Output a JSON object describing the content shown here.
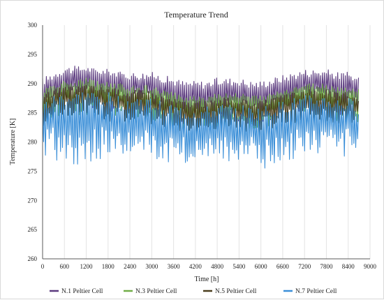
{
  "chart_data": {
    "type": "line",
    "title": "Temperature Trend",
    "xlabel": "Time [h]",
    "ylabel": "Temperature [K]",
    "xlim": [
      0,
      9000
    ],
    "ylim": [
      260,
      300
    ],
    "xticks": [
      "0",
      "600",
      "1200",
      "1800",
      "2400",
      "3000",
      "3600",
      "4200",
      "4800",
      "5400",
      "6000",
      "6600",
      "7200",
      "7800",
      "8400",
      "9000"
    ],
    "yticks": [
      "260",
      "265",
      "270",
      "275",
      "280",
      "285",
      "290",
      "295",
      "300"
    ],
    "grid": "vertical",
    "legend_position": "bottom",
    "x": [
      0,
      300,
      600,
      900,
      1200,
      1500,
      1800,
      2100,
      2400,
      2700,
      3000,
      3300,
      3600,
      3900,
      4200,
      4500,
      4800,
      5100,
      5400,
      5700,
      6000,
      6300,
      6600,
      6900,
      7200,
      7500,
      7800,
      8100,
      8400,
      8700
    ],
    "series": [
      {
        "name": "N.1 Peltier Cell",
        "color": "#5b3a7e",
        "values": [
          289,
          290,
          291,
          291,
          291.5,
          291,
          291,
          290.5,
          290,
          290,
          290,
          289.5,
          289,
          288.5,
          288.5,
          288.5,
          289,
          289,
          289,
          288.5,
          288.5,
          289,
          289.5,
          290,
          290.5,
          290.5,
          290.5,
          290,
          290,
          289
        ],
        "max": [
          291,
          292,
          293,
          293,
          293,
          292.5,
          292.5,
          292,
          292,
          292,
          292,
          291.5,
          291,
          290.5,
          290.5,
          290.5,
          291,
          291,
          291,
          290.5,
          290.5,
          291,
          291.5,
          292,
          292.5,
          292.5,
          292.5,
          292,
          292,
          291
        ],
        "min": [
          284,
          285,
          285.5,
          285.5,
          285.5,
          285.5,
          285,
          285,
          285,
          284.5,
          284.5,
          284,
          283.5,
          283,
          283,
          283,
          283.5,
          283.5,
          283.5,
          283,
          283,
          283.5,
          284,
          284.5,
          285,
          285,
          285,
          284.5,
          284.5,
          284
        ]
      },
      {
        "name": "N.3 Peltier Cell",
        "color": "#70ad47",
        "values": [
          287.5,
          288.5,
          289,
          289,
          289.5,
          289,
          289,
          288.5,
          288,
          288,
          288,
          287.5,
          287,
          286.5,
          286.5,
          286.5,
          287,
          287,
          287,
          286.5,
          286.5,
          287,
          287.5,
          288,
          288.5,
          288.5,
          288.5,
          288,
          288,
          287.5
        ],
        "max": [
          289,
          290,
          290.5,
          290.5,
          291,
          290.5,
          290.5,
          290,
          290,
          290,
          289.5,
          289,
          288.5,
          288,
          288,
          288,
          288.5,
          288.5,
          288.5,
          288,
          288,
          288.5,
          289,
          289.5,
          290,
          290,
          290,
          289.5,
          289.5,
          289
        ],
        "min": [
          283,
          284,
          284.5,
          284.5,
          284.5,
          284.5,
          284,
          284,
          284,
          283.5,
          283.5,
          283,
          282.5,
          282,
          282,
          282,
          282.5,
          282.5,
          282.5,
          282,
          282,
          282.5,
          283,
          283.5,
          284,
          284,
          284,
          283.5,
          283.5,
          283
        ]
      },
      {
        "name": "N.5 Peltier Cell",
        "color": "#4a3d1c",
        "values": [
          286.5,
          287.5,
          288,
          288,
          288.5,
          288,
          288,
          287.5,
          287,
          287,
          287,
          286.5,
          286,
          285.5,
          285.5,
          285.5,
          286,
          286,
          286,
          285.5,
          285.5,
          286,
          286.5,
          287,
          287.5,
          287.5,
          287.5,
          287,
          287,
          286.5
        ],
        "max": [
          288,
          289,
          289.5,
          289.5,
          290,
          289.5,
          289.5,
          289,
          289,
          289,
          288.5,
          288,
          287.5,
          287,
          287,
          287,
          287.5,
          287.5,
          287.5,
          287,
          287,
          287.5,
          288,
          288.5,
          289,
          289,
          289,
          288.5,
          288.5,
          288
        ],
        "min": [
          282.5,
          283.5,
          284,
          284,
          284,
          284,
          283.5,
          283.5,
          283.5,
          283,
          283,
          282.5,
          282,
          281.5,
          281.5,
          281.5,
          282,
          282,
          282,
          281.5,
          281.5,
          282,
          282.5,
          283,
          283.5,
          283.5,
          283.5,
          283,
          283,
          282.5
        ]
      },
      {
        "name": "N.7 Peltier Cell",
        "color": "#3b8fd8",
        "values": [
          283.5,
          284.5,
          285,
          285,
          285.5,
          285,
          285,
          284.5,
          284,
          284,
          284,
          283.5,
          283,
          282.5,
          282.5,
          282.5,
          283,
          283,
          283,
          282.5,
          282.5,
          283,
          283.5,
          284,
          284.5,
          284.5,
          284.5,
          284,
          284,
          283.5
        ],
        "max": [
          287,
          288,
          288.5,
          288.5,
          289,
          288.5,
          288.5,
          288,
          288,
          288,
          287.5,
          287,
          286.5,
          286,
          286,
          286,
          286.5,
          286.5,
          286.5,
          286,
          286,
          286.5,
          287,
          287.5,
          288,
          288,
          288,
          287.5,
          287.5,
          287
        ],
        "min": [
          277.5,
          276.5,
          277,
          276,
          276,
          276.5,
          277,
          277,
          277.5,
          277,
          277,
          276.5,
          275.5,
          276,
          277,
          277.5,
          277,
          276.5,
          276,
          276.5,
          275,
          276,
          276.5,
          277,
          277.5,
          277,
          278,
          277.5,
          277.5,
          277.5
        ]
      }
    ]
  }
}
